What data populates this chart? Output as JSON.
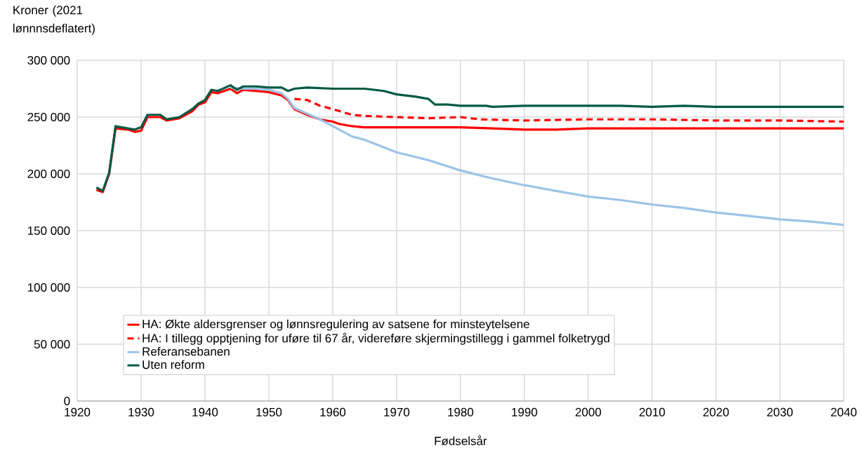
{
  "chart_data": {
    "type": "line",
    "ylabel": "Kroner (2021 lønnnsdeflatert)",
    "xlabel": "Fødselsår",
    "xlim": [
      1920,
      2040
    ],
    "xticks": [
      1920,
      1930,
      1940,
      1950,
      1960,
      1970,
      1980,
      1990,
      2000,
      2010,
      2020,
      2030,
      2040
    ],
    "ylim": [
      0,
      300000
    ],
    "yticks": [
      {
        "value": 0,
        "label": "0"
      },
      {
        "value": 50000,
        "label": "50 000"
      },
      {
        "value": 100000,
        "label": "100 000"
      },
      {
        "value": 150000,
        "label": "150 000"
      },
      {
        "value": 200000,
        "label": "200 000"
      },
      {
        "value": 250000,
        "label": "250 000"
      },
      {
        "value": 300000,
        "label": "300 000"
      }
    ],
    "grid": true,
    "legend": "bottom",
    "marker": "none",
    "series": [
      {
        "name": "HA: Økte aldersgrenser og lønnsregulering av satsene for minsteytelsene",
        "color": "#ff0000",
        "line_style": "solid",
        "x": [
          1923,
          1924,
          1925,
          1926,
          1928,
          1929,
          1930,
          1931,
          1933,
          1934,
          1936,
          1938,
          1939,
          1940,
          1941,
          1942,
          1944,
          1945,
          1946,
          1948,
          1950,
          1952,
          1953,
          1954,
          1956,
          1958,
          1960,
          1961,
          1963,
          1965,
          1970,
          1975,
          1980,
          1985,
          1990,
          1995,
          2000,
          2005,
          2010,
          2015,
          2020,
          2025,
          2030,
          2035,
          2040
        ],
        "values": [
          186000,
          184000,
          200000,
          240000,
          239000,
          237000,
          238000,
          250000,
          250000,
          247000,
          249000,
          255000,
          261000,
          263000,
          272000,
          271000,
          275000,
          271000,
          274000,
          273000,
          272000,
          269000,
          265000,
          257000,
          252000,
          248000,
          246000,
          244000,
          242000,
          241000,
          241000,
          241000,
          241000,
          240000,
          239000,
          239000,
          240000,
          240000,
          240000,
          240000,
          240000,
          240000,
          240000,
          240000,
          240000
        ]
      },
      {
        "name": "HA: I tillegg opptjening for uføre til 67 år, videreføre skjermingstillegg i gammel folketrygd",
        "color": "#ff0000",
        "line_style": "dashed",
        "x": [
          1954,
          1956,
          1958,
          1960,
          1963,
          1965,
          1970,
          1975,
          1980,
          1983,
          1990,
          2000,
          2010,
          2020,
          2030,
          2040
        ],
        "values": [
          266000,
          265000,
          260000,
          257000,
          252000,
          251000,
          250000,
          249000,
          250000,
          248000,
          247000,
          248000,
          248000,
          247000,
          247000,
          246000
        ]
      },
      {
        "name": "Referansebanen",
        "color": "#9dc3e6",
        "line_style": "solid",
        "x": [
          1944,
          1946,
          1948,
          1950,
          1952,
          1953,
          1954,
          1956,
          1958,
          1960,
          1963,
          1965,
          1970,
          1975,
          1980,
          1985,
          1990,
          1995,
          2000,
          2005,
          2010,
          2015,
          2020,
          2025,
          2030,
          2035,
          2040
        ],
        "values": [
          276000,
          275000,
          275000,
          274000,
          271000,
          266000,
          258000,
          253000,
          248000,
          242000,
          233000,
          230000,
          219000,
          212000,
          203000,
          196000,
          190000,
          185000,
          180000,
          177000,
          173000,
          170000,
          166000,
          163000,
          160000,
          158000,
          155000
        ]
      },
      {
        "name": "Uten reform",
        "color": "#005a45",
        "line_style": "solid",
        "x": [
          1923,
          1924,
          1925,
          1926,
          1928,
          1929,
          1930,
          1931,
          1933,
          1934,
          1936,
          1938,
          1939,
          1940,
          1941,
          1942,
          1944,
          1945,
          1946,
          1948,
          1950,
          1952,
          1953,
          1954,
          1956,
          1960,
          1965,
          1968,
          1970,
          1973,
          1975,
          1976,
          1978,
          1980,
          1984,
          1985,
          1990,
          1995,
          2000,
          2005,
          2010,
          2015,
          2020,
          2025,
          2030,
          2035,
          2040
        ],
        "values": [
          188000,
          185000,
          201000,
          242000,
          240000,
          239000,
          241000,
          252000,
          252000,
          248000,
          250000,
          257000,
          262000,
          265000,
          274000,
          273000,
          278000,
          274000,
          277000,
          277000,
          276000,
          276000,
          273000,
          275000,
          276000,
          275000,
          275000,
          273000,
          270000,
          268000,
          266000,
          261000,
          261000,
          260000,
          260000,
          259000,
          260000,
          260000,
          260000,
          260000,
          259000,
          260000,
          259000,
          259000,
          259000,
          259000,
          259000
        ]
      }
    ]
  }
}
